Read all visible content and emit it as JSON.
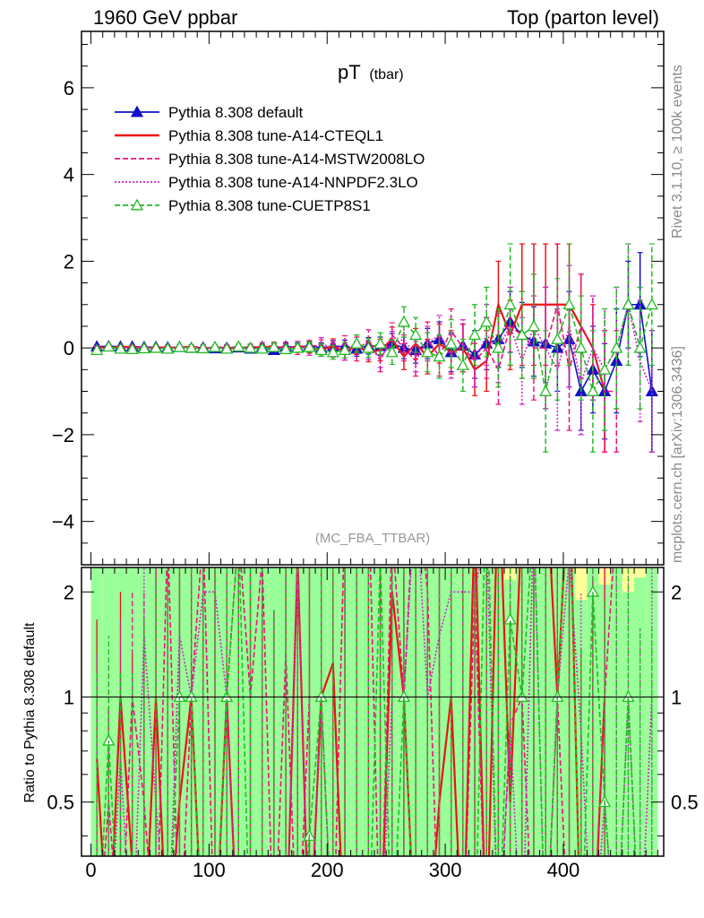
{
  "header": {
    "left": "1960 GeV ppbar",
    "right": "Top (parton level)"
  },
  "side": {
    "rivet": "Rivet 3.1.10, ≥ 100k events",
    "mcplots": "mcplots.cern.ch [arXiv:1306.3436]"
  },
  "chart_data": {
    "type": "line",
    "title": "pT",
    "title_sub": "(tbar)",
    "analysis": "(MC_FBA_TTBAR)",
    "xlim": [
      -8,
      485
    ],
    "ylim": [
      -5.0,
      7.3
    ],
    "ratio_ylim": [
      0.35,
      2.35
    ],
    "ratio_ylabel": "Ratio to Pythia 8.308 default",
    "x_ticks": [
      0,
      100,
      200,
      300,
      400
    ],
    "y_ticks": [
      -4,
      -2,
      0,
      2,
      4,
      6
    ],
    "ratio_ticks": [
      0.5,
      1,
      2
    ],
    "legend_position": "top-left",
    "series": [
      {
        "name": "Pythia 8.308 default",
        "color": "#1010c8",
        "style": "solid",
        "marker": "triangle-filled",
        "x": [
          5,
          15,
          25,
          35,
          45,
          55,
          65,
          75,
          85,
          95,
          105,
          115,
          125,
          135,
          145,
          155,
          165,
          175,
          185,
          195,
          205,
          215,
          225,
          235,
          245,
          255,
          265,
          275,
          285,
          295,
          305,
          315,
          325,
          335,
          345,
          355,
          365,
          375,
          385,
          395,
          405,
          415,
          425,
          435,
          445,
          455,
          465,
          475
        ],
        "y": [
          0.03,
          0.04,
          0.03,
          0.03,
          0.02,
          0.02,
          0.01,
          0.02,
          0.0,
          0.01,
          -0.01,
          0.0,
          0.01,
          -0.02,
          0.02,
          -0.05,
          0.03,
          0.02,
          0.05,
          0.0,
          0.04,
          0.03,
          -0.02,
          0.05,
          0.04,
          0.1,
          0.0,
          -0.05,
          0.1,
          0.2,
          -0.1,
          0.05,
          -0.15,
          0.1,
          0.2,
          0.6,
          0.3,
          0.15,
          0.1,
          0.0,
          0.2,
          -1.0,
          -0.5,
          -1.0,
          -0.3,
          1.0,
          1.0,
          -1.0
        ],
        "err": [
          0.03,
          0.03,
          0.03,
          0.03,
          0.03,
          0.03,
          0.03,
          0.03,
          0.04,
          0.04,
          0.04,
          0.05,
          0.05,
          0.06,
          0.06,
          0.07,
          0.08,
          0.09,
          0.1,
          0.12,
          0.13,
          0.15,
          0.17,
          0.19,
          0.21,
          0.23,
          0.25,
          0.3,
          0.35,
          0.4,
          0.45,
          0.5,
          0.55,
          0.6,
          0.65,
          0.7,
          0.75,
          0.8,
          0.9,
          1.0,
          1.1,
          0.9,
          1.0,
          1.1,
          1.2,
          1.0,
          1.2,
          1.4
        ]
      },
      {
        "name": "Pythia 8.308 tune-A14-CTEQL1",
        "color": "#ee1111",
        "style": "solid",
        "marker": "none",
        "x": [
          5,
          15,
          25,
          35,
          45,
          55,
          65,
          75,
          85,
          95,
          105,
          115,
          125,
          135,
          145,
          155,
          165,
          175,
          185,
          195,
          205,
          215,
          225,
          235,
          245,
          255,
          265,
          275,
          285,
          295,
          305,
          315,
          325,
          335,
          345,
          355,
          365,
          375,
          385,
          395,
          405,
          415,
          425,
          435
        ],
        "y": [
          0.02,
          0.0,
          0.03,
          0.01,
          -0.01,
          0.02,
          0.0,
          0.01,
          0.03,
          -0.02,
          0.02,
          0.0,
          -0.01,
          0.03,
          0.0,
          0.05,
          -0.03,
          0.05,
          0.0,
          -0.05,
          0.05,
          -0.1,
          0.05,
          -0.1,
          -0.05,
          0.2,
          -0.2,
          0.1,
          -0.2,
          0.1,
          -0.1,
          0.0,
          -0.5,
          -0.3,
          1.0,
          0.3,
          1.0,
          1.0,
          1.0,
          1.0,
          1.0,
          0.5,
          0.0,
          -1.0
        ],
        "err": [
          0.03,
          0.03,
          0.03,
          0.03,
          0.03,
          0.04,
          0.04,
          0.04,
          0.04,
          0.05,
          0.05,
          0.05,
          0.06,
          0.06,
          0.07,
          0.08,
          0.09,
          0.1,
          0.12,
          0.14,
          0.16,
          0.18,
          0.2,
          0.22,
          0.25,
          0.28,
          0.3,
          0.35,
          0.4,
          0.45,
          0.5,
          0.55,
          0.6,
          0.7,
          1.0,
          0.8,
          1.4,
          1.4,
          1.4,
          1.4,
          1.4,
          1.2,
          1.0,
          1.4
        ]
      },
      {
        "name": "Pythia 8.308 tune-A14-MSTW2008LO",
        "color": "#ee1177",
        "style": "dashed",
        "marker": "none",
        "x": [
          5,
          15,
          25,
          35,
          45,
          55,
          65,
          75,
          85,
          95,
          105,
          115,
          125,
          135,
          145,
          155,
          165,
          175,
          185,
          195,
          205,
          215,
          225,
          235,
          245,
          255,
          265,
          275,
          285,
          295,
          305,
          315,
          325,
          335,
          345,
          355,
          365,
          375,
          385,
          395,
          405,
          415,
          425,
          435,
          445
        ],
        "y": [
          0.0,
          0.02,
          -0.02,
          0.03,
          0.01,
          0.0,
          0.03,
          -0.01,
          0.02,
          0.03,
          0.0,
          0.02,
          0.03,
          -0.02,
          0.05,
          0.0,
          0.04,
          -0.05,
          0.05,
          0.05,
          -0.05,
          0.1,
          -0.1,
          0.2,
          -0.3,
          0.3,
          0.0,
          -0.3,
          0.2,
          -0.2,
          0.4,
          0.0,
          -0.3,
          0.0,
          -0.5,
          0.5,
          0.3,
          0.0,
          0.0,
          1.0,
          -0.5,
          0.5,
          0.0,
          -1.0,
          -1.0
        ],
        "err": [
          0.03,
          0.03,
          0.03,
          0.03,
          0.03,
          0.04,
          0.04,
          0.04,
          0.04,
          0.05,
          0.05,
          0.05,
          0.06,
          0.06,
          0.07,
          0.08,
          0.09,
          0.1,
          0.12,
          0.14,
          0.16,
          0.18,
          0.2,
          0.22,
          0.25,
          0.28,
          0.3,
          0.35,
          0.4,
          0.45,
          0.5,
          0.55,
          0.6,
          0.7,
          0.8,
          0.9,
          1.0,
          1.2,
          1.4,
          1.4,
          1.4,
          1.2,
          1.2,
          1.4,
          1.4
        ]
      },
      {
        "name": "Pythia 8.308 tune-A14-NNPDF2.3LO",
        "color": "#cc22cc",
        "style": "dotted",
        "marker": "none",
        "x": [
          5,
          15,
          25,
          35,
          45,
          55,
          65,
          75,
          85,
          95,
          105,
          115,
          125,
          135,
          145,
          155,
          165,
          175,
          185,
          195,
          205,
          215,
          225,
          235,
          245,
          255,
          265,
          275,
          285,
          295,
          305,
          315,
          325,
          335,
          345,
          355,
          365,
          375,
          385,
          395,
          405,
          415,
          425,
          435,
          445,
          455,
          465,
          475
        ],
        "y": [
          0.01,
          -0.02,
          0.02,
          0.0,
          0.03,
          0.01,
          -0.02,
          0.03,
          0.0,
          0.02,
          -0.02,
          0.03,
          0.0,
          0.02,
          -0.03,
          0.04,
          0.0,
          0.05,
          -0.05,
          0.1,
          0.0,
          -0.1,
          0.1,
          -0.05,
          -0.2,
          0.1,
          0.2,
          -0.2,
          0.1,
          0.3,
          -0.2,
          0.1,
          -0.3,
          0.3,
          0.0,
          0.5,
          -0.3,
          0.5,
          0.0,
          -0.5,
          0.5,
          -0.8,
          0.0,
          -0.5,
          0.0,
          1.0,
          -0.3,
          -1.0
        ],
        "err": [
          0.03,
          0.03,
          0.03,
          0.03,
          0.03,
          0.04,
          0.04,
          0.04,
          0.04,
          0.05,
          0.05,
          0.05,
          0.06,
          0.06,
          0.07,
          0.08,
          0.09,
          0.1,
          0.12,
          0.14,
          0.16,
          0.18,
          0.2,
          0.22,
          0.25,
          0.28,
          0.3,
          0.35,
          0.4,
          0.45,
          0.5,
          0.55,
          0.6,
          0.7,
          0.8,
          0.9,
          1.0,
          1.2,
          1.4,
          1.4,
          1.4,
          1.2,
          1.2,
          1.4,
          1.4,
          1.4,
          1.4,
          1.4
        ]
      },
      {
        "name": "Pythia 8.308 tune-CUETP8S1",
        "color": "#22bb22",
        "style": "dashed",
        "marker": "triangle-open",
        "x": [
          5,
          15,
          25,
          35,
          45,
          55,
          65,
          75,
          85,
          95,
          105,
          115,
          125,
          135,
          145,
          155,
          165,
          175,
          185,
          195,
          205,
          215,
          225,
          235,
          245,
          255,
          265,
          275,
          285,
          295,
          305,
          315,
          325,
          335,
          345,
          355,
          365,
          375,
          385,
          395,
          405,
          415,
          425,
          435,
          445,
          455,
          465,
          475
        ],
        "y": [
          -0.05,
          0.03,
          -0.02,
          -0.03,
          -0.01,
          0.0,
          -0.02,
          0.02,
          0.0,
          -0.01,
          0.02,
          -0.02,
          0.03,
          0.0,
          -0.02,
          0.02,
          -0.03,
          0.0,
          0.02,
          -0.05,
          -0.1,
          -0.05,
          0.1,
          0.0,
          0.1,
          -0.1,
          0.6,
          0.3,
          -0.1,
          -0.2,
          0.1,
          -0.4,
          0.3,
          0.6,
          0.0,
          1.0,
          0.3,
          0.5,
          -1.0,
          0.2,
          1.0,
          0.0,
          -1.0,
          -0.5,
          0.0,
          1.0,
          0.0,
          1.0
        ],
        "err": [
          0.03,
          0.03,
          0.03,
          0.03,
          0.03,
          0.04,
          0.04,
          0.04,
          0.04,
          0.05,
          0.05,
          0.05,
          0.06,
          0.06,
          0.07,
          0.08,
          0.09,
          0.1,
          0.12,
          0.14,
          0.16,
          0.18,
          0.2,
          0.22,
          0.25,
          0.28,
          0.35,
          0.4,
          0.45,
          0.5,
          0.55,
          0.6,
          0.7,
          0.8,
          0.9,
          1.4,
          1.0,
          1.2,
          1.4,
          1.4,
          1.4,
          1.2,
          1.4,
          1.4,
          1.4,
          1.4,
          1.4,
          1.4
        ]
      }
    ]
  }
}
